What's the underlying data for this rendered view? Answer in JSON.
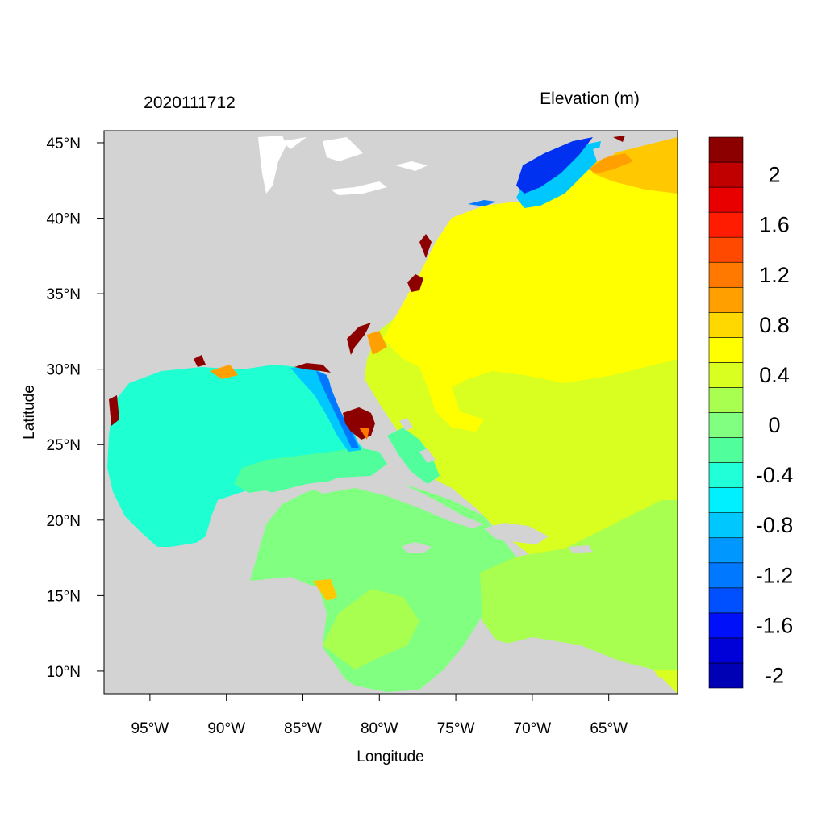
{
  "header": {
    "left_title": "2020111712",
    "right_title": "Elevation (m)"
  },
  "axes": {
    "xlabel": "Longitude",
    "ylabel": "Latitude",
    "x_ticks": [
      {
        "value": -95,
        "label": "95°W"
      },
      {
        "value": -90,
        "label": "90°W"
      },
      {
        "value": -85,
        "label": "85°W"
      },
      {
        "value": -80,
        "label": "80°W"
      },
      {
        "value": -75,
        "label": "75°W"
      },
      {
        "value": -70,
        "label": "70°W"
      },
      {
        "value": -65,
        "label": "65°W"
      }
    ],
    "y_ticks": [
      {
        "value": 45,
        "label": "45°N"
      },
      {
        "value": 40,
        "label": "40°N"
      },
      {
        "value": 35,
        "label": "35°N"
      },
      {
        "value": 30,
        "label": "30°N"
      },
      {
        "value": 25,
        "label": "25°N"
      },
      {
        "value": 20,
        "label": "20°N"
      },
      {
        "value": 15,
        "label": "15°N"
      },
      {
        "value": 10,
        "label": "10°N"
      }
    ],
    "lon_range": [
      -98,
      -60.5
    ],
    "lat_range": [
      8.5,
      45.8
    ]
  },
  "colorbar": {
    "colors": [
      "#0000b4",
      "#0000d8",
      "#0010f8",
      "#0050ff",
      "#0078ff",
      "#0098ff",
      "#00c8ff",
      "#00f0ff",
      "#20ffd8",
      "#50ff9c",
      "#80ff80",
      "#a8ff50",
      "#d8ff20",
      "#ffff00",
      "#ffd800",
      "#ffa000",
      "#ff7800",
      "#ff4800",
      "#ff1c00",
      "#e80000",
      "#c00000",
      "#8c0000"
    ],
    "labels": [
      {
        "pos": 1,
        "text": "-2"
      },
      {
        "pos": 3,
        "text": "-1.6"
      },
      {
        "pos": 5,
        "text": "-1.2"
      },
      {
        "pos": 7,
        "text": "-0.8"
      },
      {
        "pos": 9,
        "text": "-0.4"
      },
      {
        "pos": 11,
        "text": "0"
      },
      {
        "pos": 13,
        "text": "0.4"
      },
      {
        "pos": 15,
        "text": "0.8"
      },
      {
        "pos": 17,
        "text": "1.2"
      },
      {
        "pos": 19,
        "text": "1.6"
      },
      {
        "pos": 21,
        "text": "2"
      }
    ]
  },
  "map_colors": {
    "land": "#d3d3d3",
    "lakes": "#ffffff",
    "gulf": "#1effd2",
    "gulf_south": "#50ff9c",
    "caribbean": "#80ff80",
    "atlantic_south": "#d8ff20",
    "atlantic_north": "#ffff00",
    "nova_scotia": "#ffc800",
    "gulf_maine": "#0030f0",
    "florida_surge": "#8c0000"
  }
}
